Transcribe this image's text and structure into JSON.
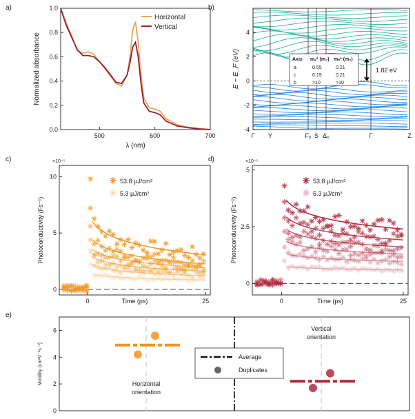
{
  "panel_labels": [
    "a)",
    "b)",
    "c)",
    "d)",
    "e)"
  ],
  "colors": {
    "horizontal": "#e8a55a",
    "vertical": "#9b1b30",
    "band_cond": "#2ab5a5",
    "band_val": "#2f8be0",
    "orange_fit": "#ef9520",
    "red_fit": "#b0293e"
  },
  "chart_data": [
    {
      "panel": "a",
      "type": "line",
      "xlabel": "λ (nm)",
      "ylabel": "Normalized absorbance",
      "xlim": [
        430,
        700
      ],
      "ylim": [
        0,
        1.0
      ],
      "xticks": [
        "500",
        "600",
        "700"
      ],
      "yticks": [
        "0.0",
        "0.2",
        "0.4",
        "0.6",
        "0.8",
        "1.0"
      ],
      "series": [
        {
          "name": "Horizontal",
          "x": [
            430,
            440,
            450,
            460,
            470,
            480,
            490,
            500,
            510,
            520,
            530,
            540,
            550,
            555,
            560,
            565,
            570,
            575,
            580,
            590,
            600,
            610,
            620,
            640,
            660,
            680,
            700
          ],
          "y": [
            1.0,
            0.88,
            0.77,
            0.65,
            0.63,
            0.64,
            0.62,
            0.56,
            0.5,
            0.44,
            0.38,
            0.36,
            0.45,
            0.6,
            0.82,
            0.89,
            0.72,
            0.45,
            0.26,
            0.18,
            0.17,
            0.15,
            0.09,
            0.04,
            0.02,
            0.01,
            0.0
          ]
        },
        {
          "name": "Vertical",
          "x": [
            430,
            440,
            450,
            460,
            470,
            480,
            490,
            500,
            510,
            520,
            530,
            540,
            550,
            555,
            560,
            565,
            570,
            575,
            580,
            590,
            600,
            610,
            620,
            640,
            660,
            680,
            700
          ],
          "y": [
            1.0,
            0.86,
            0.76,
            0.66,
            0.61,
            0.61,
            0.6,
            0.56,
            0.51,
            0.45,
            0.39,
            0.38,
            0.45,
            0.55,
            0.68,
            0.72,
            0.6,
            0.38,
            0.22,
            0.15,
            0.14,
            0.12,
            0.07,
            0.03,
            0.015,
            0.005,
            0.0
          ]
        }
      ]
    },
    {
      "panel": "b",
      "type": "line",
      "ylabel": "E − E_F (eV)",
      "ylim": [
        -4,
        6
      ],
      "yticks": [
        "-4",
        "-2",
        "0",
        "2",
        "4"
      ],
      "kpoints": [
        "Γ",
        "Y",
        "F₀",
        "S",
        "Δ₀",
        "Γ",
        "Z"
      ],
      "gap_annotation": "1.82 eV",
      "table": {
        "headers": [
          "Axis",
          "mₑ* (m₀)",
          "mₕ* (m₀)"
        ],
        "rows": [
          [
            "a",
            "0.55",
            "0.21"
          ],
          [
            "c",
            "0.19",
            "0.21"
          ],
          [
            "b",
            ">10",
            ">10"
          ]
        ]
      }
    },
    {
      "panel": "c",
      "type": "scatter",
      "xlabel": "Time (ps)",
      "ylabel": "Photoconductivity (Fs⁻¹)",
      "exponent": "×10⁻⁵",
      "xlim": [
        -6,
        26
      ],
      "ylim": [
        -0.5,
        11
      ],
      "xticks": [
        "0",
        "25"
      ],
      "yticks": [
        "0",
        "5",
        "10"
      ],
      "legend": [
        "53.8 μJ/cm²",
        "5.3 μJ/cm²"
      ],
      "fit_amplitudes": [
        6.8,
        5.0,
        4.0,
        3.2,
        2.4,
        1.5
      ],
      "fit_decays": [
        0.55,
        0.55,
        0.52,
        0.5,
        0.5,
        0.45
      ],
      "peaks": [
        9.8,
        7.2,
        5.6,
        4.4,
        3.4,
        2.2
      ]
    },
    {
      "panel": "d",
      "type": "scatter",
      "xlabel": "Time (ps)",
      "ylabel": "Photoconductivity (Fs⁻¹)",
      "exponent": "×10⁻⁵",
      "xlim": [
        -6,
        26
      ],
      "ylim": [
        -0.5,
        5.2
      ],
      "xticks": [
        "0",
        "25"
      ],
      "yticks": [
        "0",
        "2.5",
        "5"
      ],
      "legend": [
        "53.8 μJ/cm²",
        "5.3 μJ/cm²"
      ],
      "fit_amplitudes": [
        4.0,
        3.2,
        2.6,
        2.0,
        1.4,
        0.8
      ],
      "fit_decays": [
        0.4,
        0.4,
        0.38,
        0.35,
        0.3,
        0.25
      ],
      "peaks": [
        4.3,
        3.6,
        2.9,
        2.3,
        1.6,
        1.0
      ]
    },
    {
      "panel": "e",
      "type": "scatter",
      "ylabel": "Mobility (cm²V⁻¹s⁻¹)",
      "ylim": [
        0,
        7
      ],
      "yticks": [
        "0",
        "2",
        "4",
        "6"
      ],
      "legend": [
        "Average",
        "Duplicates"
      ],
      "groups": [
        {
          "name": "Horizontal orientation",
          "average": 4.9,
          "duplicates": [
            5.6,
            4.2
          ]
        },
        {
          "name": "Vertical orientation",
          "average": 2.2,
          "duplicates": [
            2.8,
            1.7
          ]
        }
      ]
    }
  ]
}
